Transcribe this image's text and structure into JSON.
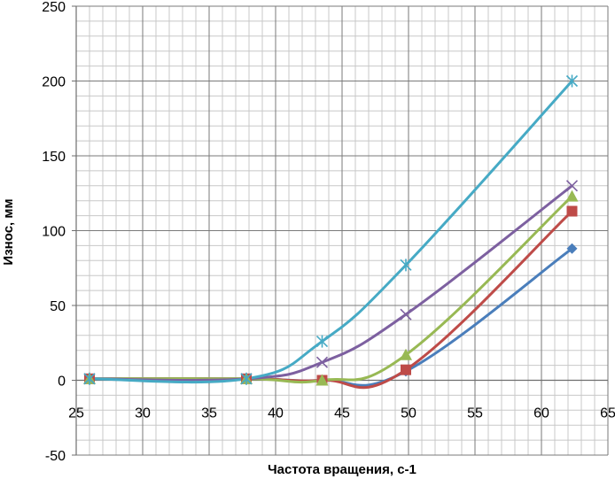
{
  "chart_data": {
    "type": "scatter",
    "title": "",
    "xlabel": "Частота вращения, с-1",
    "ylabel": "Износ, мм",
    "xlim": [
      25,
      65
    ],
    "ylim": [
      -50,
      250
    ],
    "x_major_ticks": [
      25,
      30,
      35,
      40,
      45,
      50,
      55,
      60,
      65
    ],
    "y_major_ticks": [
      -50,
      0,
      50,
      100,
      150,
      200,
      250
    ],
    "x_minor_step": 1,
    "y_minor_step": 10,
    "grid": true,
    "legend": "none",
    "series": [
      {
        "marker": "diamond",
        "color": "#4a7ebb",
        "x": [
          26,
          37.8,
          43.5,
          49.8,
          62.3
        ],
        "y": [
          1,
          1,
          0,
          6,
          88
        ]
      },
      {
        "marker": "square",
        "color": "#be4b48",
        "x": [
          26,
          37.8,
          43.5,
          49.8,
          62.3
        ],
        "y": [
          1,
          1,
          0,
          7,
          113
        ]
      },
      {
        "marker": "triangle",
        "color": "#98b954",
        "x": [
          26,
          37.8,
          43.5,
          49.8,
          62.3
        ],
        "y": [
          1,
          1,
          0,
          17,
          123
        ]
      },
      {
        "marker": "x",
        "color": "#7d60a0",
        "x": [
          26,
          37.8,
          43.5,
          49.8,
          62.3
        ],
        "y": [
          1,
          1,
          12,
          44,
          130
        ]
      },
      {
        "marker": "star",
        "color": "#46aac5",
        "x": [
          26,
          37.8,
          43.5,
          49.8,
          62.3
        ],
        "y": [
          1,
          1,
          26,
          77,
          200
        ]
      }
    ]
  }
}
